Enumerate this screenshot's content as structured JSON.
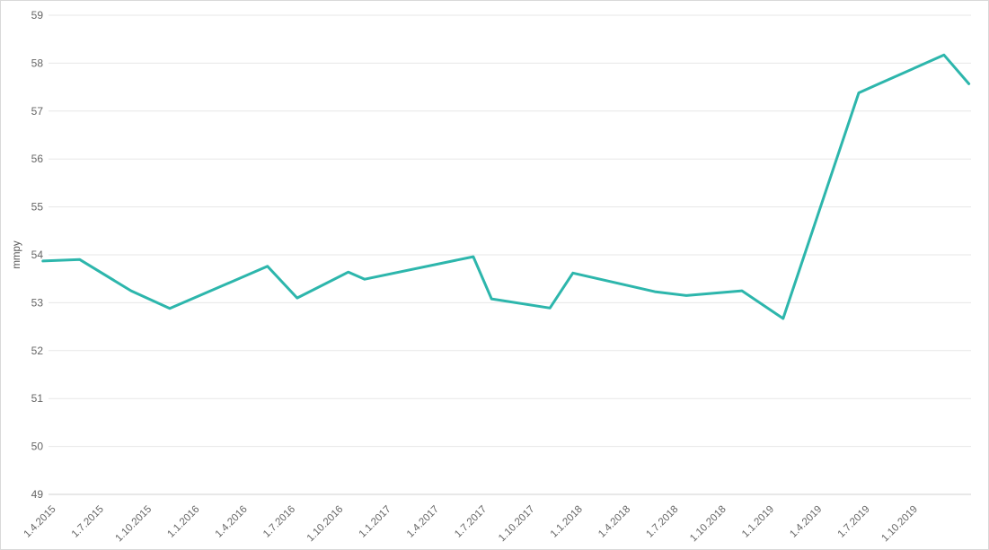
{
  "chart_data": {
    "type": "line",
    "title": "",
    "xlabel": "",
    "ylabel": "mmpy",
    "ylim": [
      49,
      59
    ],
    "y_ticks": [
      59,
      58,
      57,
      56,
      55,
      54,
      53,
      52,
      51,
      50,
      49
    ],
    "x_tick_labels": [
      "1.4.2015",
      "1.7.2015",
      "1.10.2015",
      "1.1.2016",
      "1.4.2016",
      "1.7.2016",
      "1.10.2016",
      "1.1.2017",
      "1.4.2017",
      "1.7.2017",
      "1.10.2017",
      "1.1.2018",
      "1.4.2018",
      "1.7.2018",
      "1.10.2018",
      "1.1.2019",
      "1.4.2019",
      "1.7.2019",
      "1.10.2019"
    ],
    "x_axis_type": "time-quarterly",
    "grid": "horizontal-only",
    "legend": "none",
    "series": [
      {
        "name": "mmpy",
        "color": "#2db6ac",
        "points": [
          {
            "x_quarter_index": -0.37,
            "value": 53.87
          },
          {
            "x_quarter_index": 0.4,
            "value": 53.9
          },
          {
            "x_quarter_index": 1.47,
            "value": 53.25
          },
          {
            "x_quarter_index": 2.28,
            "value": 52.88
          },
          {
            "x_quarter_index": 4.32,
            "value": 53.76
          },
          {
            "x_quarter_index": 4.94,
            "value": 53.1
          },
          {
            "x_quarter_index": 6.01,
            "value": 53.64
          },
          {
            "x_quarter_index": 6.35,
            "value": 53.49
          },
          {
            "x_quarter_index": 8.62,
            "value": 53.96
          },
          {
            "x_quarter_index": 9.0,
            "value": 53.08
          },
          {
            "x_quarter_index": 10.22,
            "value": 52.89
          },
          {
            "x_quarter_index": 10.7,
            "value": 53.62
          },
          {
            "x_quarter_index": 12.41,
            "value": 53.23
          },
          {
            "x_quarter_index": 13.07,
            "value": 53.15
          },
          {
            "x_quarter_index": 14.23,
            "value": 53.25
          },
          {
            "x_quarter_index": 15.09,
            "value": 52.67
          },
          {
            "x_quarter_index": 16.67,
            "value": 57.38
          },
          {
            "x_quarter_index": 17.05,
            "value": 57.55
          },
          {
            "x_quarter_index": 18.45,
            "value": 58.17
          },
          {
            "x_quarter_index": 18.97,
            "value": 57.57
          }
        ]
      }
    ]
  },
  "colors": {
    "background": "#ffffff",
    "frame_border": "#d9d9d9",
    "gridline": "#e7e7e7",
    "axis_line": "#d2d2d2",
    "tick_label": "#666666",
    "series": "#2db6ac"
  }
}
